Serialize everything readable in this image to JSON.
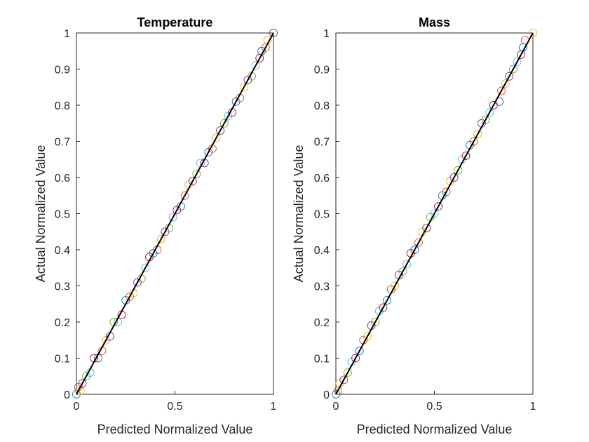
{
  "chart_data": [
    {
      "type": "scatter",
      "title": "Temperature",
      "xlabel": "Predicted Normalized Value",
      "ylabel": "Actual Normalized Value",
      "xlim": [
        0,
        1
      ],
      "ylim": [
        0,
        1
      ],
      "xticks": [
        "0",
        "0.5",
        "1"
      ],
      "yticks": [
        "0",
        "0.1",
        "0.2",
        "0.3",
        "0.4",
        "0.5",
        "0.6",
        "0.7",
        "0.8",
        "0.9",
        "1"
      ],
      "grid": false,
      "marker": "open-circle",
      "series_colors": [
        "#0072BD",
        "#D95319",
        "#EDB120",
        "#7E2F8E",
        "#77AC30",
        "#4DBEEE",
        "#A2142F"
      ],
      "reference_line": {
        "x": [
          0,
          1
        ],
        "y": [
          0,
          1
        ],
        "color": "#000000"
      },
      "points": [
        [
          0.0,
          0.0
        ],
        [
          0.01,
          0.02
        ],
        [
          0.02,
          0.01
        ],
        [
          0.03,
          0.03
        ],
        [
          0.05,
          0.05
        ],
        [
          0.07,
          0.06
        ],
        [
          0.09,
          0.1
        ],
        [
          0.11,
          0.1
        ],
        [
          0.13,
          0.12
        ],
        [
          0.15,
          0.15
        ],
        [
          0.17,
          0.16
        ],
        [
          0.19,
          0.2
        ],
        [
          0.21,
          0.2
        ],
        [
          0.23,
          0.22
        ],
        [
          0.25,
          0.26
        ],
        [
          0.27,
          0.27
        ],
        [
          0.29,
          0.28
        ],
        [
          0.31,
          0.31
        ],
        [
          0.33,
          0.32
        ],
        [
          0.35,
          0.35
        ],
        [
          0.37,
          0.38
        ],
        [
          0.39,
          0.39
        ],
        [
          0.41,
          0.4
        ],
        [
          0.43,
          0.43
        ],
        [
          0.45,
          0.45
        ],
        [
          0.47,
          0.46
        ],
        [
          0.49,
          0.49
        ],
        [
          0.51,
          0.51
        ],
        [
          0.53,
          0.52
        ],
        [
          0.55,
          0.55
        ],
        [
          0.57,
          0.58
        ],
        [
          0.59,
          0.59
        ],
        [
          0.61,
          0.61
        ],
        [
          0.63,
          0.64
        ],
        [
          0.65,
          0.64
        ],
        [
          0.67,
          0.67
        ],
        [
          0.69,
          0.68
        ],
        [
          0.71,
          0.71
        ],
        [
          0.73,
          0.73
        ],
        [
          0.75,
          0.75
        ],
        [
          0.77,
          0.77
        ],
        [
          0.79,
          0.78
        ],
        [
          0.81,
          0.81
        ],
        [
          0.83,
          0.82
        ],
        [
          0.85,
          0.85
        ],
        [
          0.87,
          0.87
        ],
        [
          0.89,
          0.88
        ],
        [
          0.91,
          0.91
        ],
        [
          0.93,
          0.93
        ],
        [
          0.94,
          0.95
        ],
        [
          0.96,
          0.96
        ],
        [
          0.97,
          0.98
        ],
        [
          1.0,
          1.0
        ]
      ]
    },
    {
      "type": "scatter",
      "title": "Mass",
      "xlabel": "Predicted Normalized Value",
      "ylabel": "Actual Normalized Value",
      "xlim": [
        0,
        1
      ],
      "ylim": [
        0,
        1
      ],
      "xticks": [
        "0",
        "0.5",
        "1"
      ],
      "yticks": [
        "0",
        "0.1",
        "0.2",
        "0.3",
        "0.4",
        "0.5",
        "0.6",
        "0.7",
        "0.8",
        "0.9",
        "1"
      ],
      "grid": false,
      "marker": "open-circle",
      "series_colors": [
        "#0072BD",
        "#D95319",
        "#EDB120",
        "#7E2F8E",
        "#77AC30",
        "#4DBEEE",
        "#A2142F"
      ],
      "reference_line": {
        "x": [
          0,
          1
        ],
        "y": [
          0,
          1
        ],
        "color": "#000000"
      },
      "points": [
        [
          0.0,
          0.0
        ],
        [
          0.01,
          0.01
        ],
        [
          0.02,
          0.03
        ],
        [
          0.04,
          0.04
        ],
        [
          0.06,
          0.06
        ],
        [
          0.08,
          0.09
        ],
        [
          0.1,
          0.1
        ],
        [
          0.12,
          0.12
        ],
        [
          0.14,
          0.15
        ],
        [
          0.16,
          0.16
        ],
        [
          0.18,
          0.19
        ],
        [
          0.2,
          0.2
        ],
        [
          0.22,
          0.23
        ],
        [
          0.24,
          0.24
        ],
        [
          0.26,
          0.26
        ],
        [
          0.28,
          0.29
        ],
        [
          0.3,
          0.3
        ],
        [
          0.32,
          0.33
        ],
        [
          0.34,
          0.34
        ],
        [
          0.36,
          0.36
        ],
        [
          0.38,
          0.39
        ],
        [
          0.4,
          0.4
        ],
        [
          0.42,
          0.42
        ],
        [
          0.44,
          0.45
        ],
        [
          0.46,
          0.46
        ],
        [
          0.48,
          0.49
        ],
        [
          0.5,
          0.5
        ],
        [
          0.52,
          0.52
        ],
        [
          0.54,
          0.55
        ],
        [
          0.56,
          0.56
        ],
        [
          0.58,
          0.59
        ],
        [
          0.6,
          0.6
        ],
        [
          0.62,
          0.62
        ],
        [
          0.64,
          0.65
        ],
        [
          0.66,
          0.66
        ],
        [
          0.68,
          0.69
        ],
        [
          0.7,
          0.7
        ],
        [
          0.72,
          0.72
        ],
        [
          0.74,
          0.75
        ],
        [
          0.76,
          0.76
        ],
        [
          0.78,
          0.78
        ],
        [
          0.8,
          0.8
        ],
        [
          0.83,
          0.81
        ],
        [
          0.84,
          0.84
        ],
        [
          0.86,
          0.86
        ],
        [
          0.88,
          0.88
        ],
        [
          0.9,
          0.9
        ],
        [
          0.92,
          0.92
        ],
        [
          0.94,
          0.94
        ],
        [
          0.95,
          0.96
        ],
        [
          0.96,
          0.98
        ],
        [
          1.0,
          1.0
        ]
      ]
    }
  ]
}
